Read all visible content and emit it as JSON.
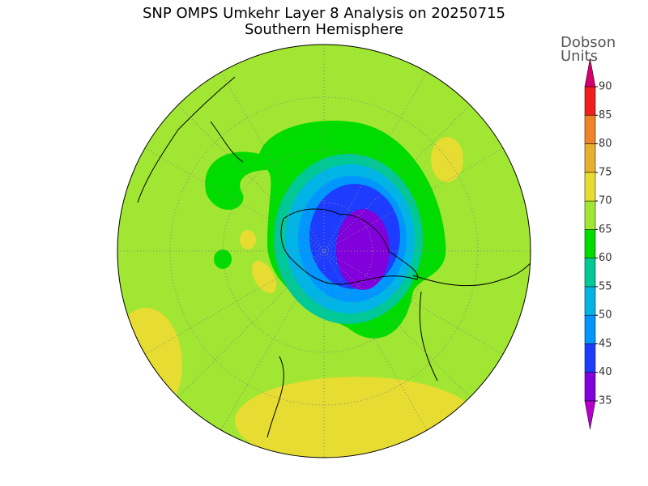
{
  "title": "SNP OMPS Umkehr Layer 8 Analysis on 20250715",
  "subtitle": "Southern Hemisphere",
  "colorbar": {
    "label_line1": "Dobson",
    "label_line2": "Units",
    "ticks": [
      35,
      40,
      45,
      50,
      55,
      60,
      65,
      70,
      75,
      80,
      85,
      90
    ],
    "colors": [
      "#8200dc",
      "#1e3cff",
      "#0096ff",
      "#00b4e6",
      "#00c896",
      "#00dc00",
      "#a0e632",
      "#e6dc32",
      "#e6af2d",
      "#f08228",
      "#f01e1e"
    ],
    "under_color": "#b400c8",
    "over_color": "#d2006e"
  }
}
